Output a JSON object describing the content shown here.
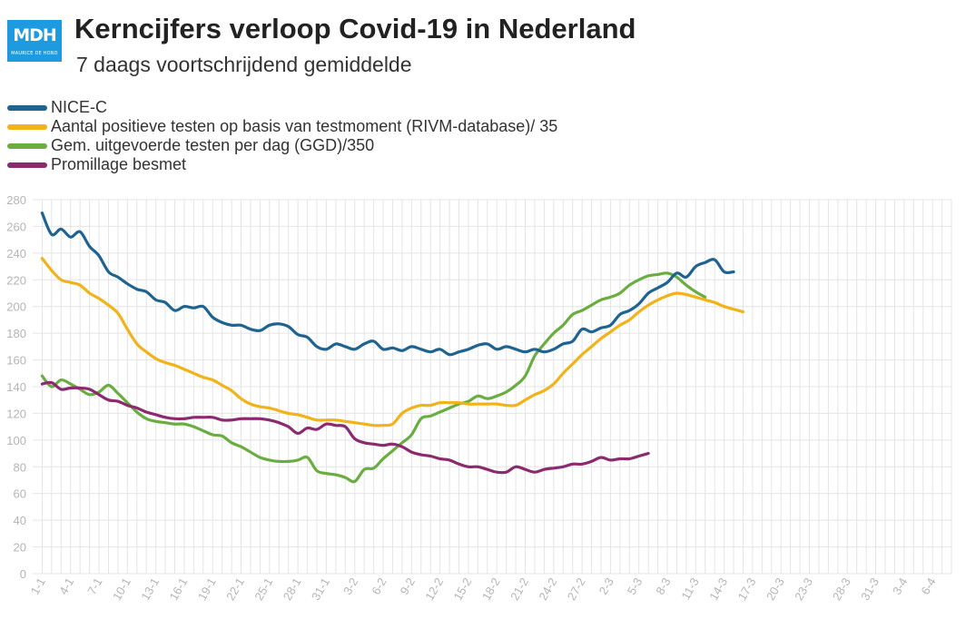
{
  "header": {
    "logo_text": "MDH",
    "logo_subtext": "MAURICE DE HOND",
    "title": "Kerncijfers verloop Covid-19 in Nederland",
    "subtitle": "7 daags voortschrijdend gemiddelde"
  },
  "colors": {
    "logo_bg": "#1e9be0",
    "grid": "#e4e4e4",
    "tick_text": "#b5b5b5"
  },
  "chart_data": {
    "type": "line",
    "title": "Kerncijfers verloop Covid-19 in Nederland",
    "subtitle": "7 daags voortschrijdend gemiddelde",
    "xlabel": "",
    "ylabel": "",
    "ylim": [
      0,
      280
    ],
    "yticks": [
      0,
      20,
      40,
      60,
      80,
      100,
      120,
      140,
      160,
      180,
      200,
      220,
      240,
      260,
      280
    ],
    "x_tick_labels": [
      "1-1",
      "4-1",
      "7-1",
      "10-1",
      "13-1",
      "16-1",
      "19-1",
      "22-1",
      "25-1",
      "28-1",
      "31-1",
      "3-2",
      "6-2",
      "9-2",
      "12-2",
      "15-2",
      "18-2",
      "21-2",
      "24-2",
      "27-2",
      "2-3",
      "5-3",
      "8-3",
      "11-3",
      "14-3",
      "17-3",
      "20-3",
      "23-3",
      "28-3",
      "31-3",
      "3-4",
      "6-4"
    ],
    "x_tick_days": [
      1,
      4,
      7,
      10,
      13,
      16,
      19,
      22,
      25,
      28,
      31,
      34,
      37,
      40,
      43,
      46,
      49,
      52,
      55,
      58,
      61,
      64,
      67,
      70,
      73,
      76,
      79,
      82,
      86,
      89,
      92,
      95
    ],
    "x_range": [
      0,
      97
    ],
    "grid": true,
    "legend_position": "top-left",
    "series": [
      {
        "name": "NICE-C",
        "color": "#1f6391",
        "points": [
          [
            1,
            270
          ],
          [
            2,
            254
          ],
          [
            3,
            258
          ],
          [
            4,
            252
          ],
          [
            5,
            256
          ],
          [
            6,
            245
          ],
          [
            7,
            238
          ],
          [
            8,
            226
          ],
          [
            9,
            222
          ],
          [
            10,
            217
          ],
          [
            11,
            213
          ],
          [
            12,
            211
          ],
          [
            13,
            205
          ],
          [
            14,
            203
          ],
          [
            15,
            197
          ],
          [
            16,
            200
          ],
          [
            17,
            199
          ],
          [
            18,
            200
          ],
          [
            19,
            192
          ],
          [
            20,
            188
          ],
          [
            21,
            186
          ],
          [
            22,
            186
          ],
          [
            23,
            183
          ],
          [
            24,
            182
          ],
          [
            25,
            186
          ],
          [
            26,
            187
          ],
          [
            27,
            185
          ],
          [
            28,
            179
          ],
          [
            29,
            177
          ],
          [
            30,
            170
          ],
          [
            31,
            168
          ],
          [
            32,
            172
          ],
          [
            33,
            170
          ],
          [
            34,
            168
          ],
          [
            35,
            172
          ],
          [
            36,
            174
          ],
          [
            37,
            168
          ],
          [
            38,
            169
          ],
          [
            39,
            167
          ],
          [
            40,
            170
          ],
          [
            41,
            168
          ],
          [
            42,
            166
          ],
          [
            43,
            168
          ],
          [
            44,
            164
          ],
          [
            45,
            166
          ],
          [
            46,
            168
          ],
          [
            47,
            171
          ],
          [
            48,
            172
          ],
          [
            49,
            168
          ],
          [
            50,
            170
          ],
          [
            51,
            168
          ],
          [
            52,
            166
          ],
          [
            53,
            168
          ],
          [
            54,
            166
          ],
          [
            55,
            168
          ],
          [
            56,
            172
          ],
          [
            57,
            174
          ],
          [
            58,
            183
          ],
          [
            59,
            181
          ],
          [
            60,
            184
          ],
          [
            61,
            186
          ],
          [
            62,
            194
          ],
          [
            63,
            197
          ],
          [
            64,
            202
          ],
          [
            65,
            210
          ],
          [
            66,
            214
          ],
          [
            67,
            218
          ],
          [
            68,
            225
          ],
          [
            69,
            222
          ],
          [
            70,
            230
          ],
          [
            71,
            233
          ],
          [
            72,
            235
          ],
          [
            73,
            226
          ],
          [
            74,
            226
          ]
        ]
      },
      {
        "name": "Aantal positieve testen op basis van testmoment (RIVM-database)/ 35",
        "color": "#f2b219",
        "points": [
          [
            1,
            236
          ],
          [
            2,
            227
          ],
          [
            3,
            220
          ],
          [
            4,
            218
          ],
          [
            5,
            216
          ],
          [
            6,
            210
          ],
          [
            7,
            206
          ],
          [
            8,
            201
          ],
          [
            9,
            195
          ],
          [
            10,
            183
          ],
          [
            11,
            172
          ],
          [
            12,
            166
          ],
          [
            13,
            161
          ],
          [
            14,
            158
          ],
          [
            15,
            156
          ],
          [
            16,
            153
          ],
          [
            17,
            150
          ],
          [
            18,
            147
          ],
          [
            19,
            145
          ],
          [
            20,
            141
          ],
          [
            21,
            137
          ],
          [
            22,
            131
          ],
          [
            23,
            127
          ],
          [
            24,
            125
          ],
          [
            25,
            124
          ],
          [
            26,
            122
          ],
          [
            27,
            120
          ],
          [
            28,
            119
          ],
          [
            29,
            117
          ],
          [
            30,
            115
          ],
          [
            31,
            115
          ],
          [
            32,
            115
          ],
          [
            33,
            114
          ],
          [
            34,
            113
          ],
          [
            35,
            112
          ],
          [
            36,
            111
          ],
          [
            37,
            111
          ],
          [
            38,
            112
          ],
          [
            39,
            120
          ],
          [
            40,
            124
          ],
          [
            41,
            126
          ],
          [
            42,
            126
          ],
          [
            43,
            128
          ],
          [
            44,
            128
          ],
          [
            45,
            128
          ],
          [
            46,
            127
          ],
          [
            47,
            127
          ],
          [
            48,
            127
          ],
          [
            49,
            127
          ],
          [
            50,
            126
          ],
          [
            51,
            126
          ],
          [
            52,
            130
          ],
          [
            53,
            134
          ],
          [
            54,
            137
          ],
          [
            55,
            142
          ],
          [
            56,
            150
          ],
          [
            57,
            157
          ],
          [
            58,
            164
          ],
          [
            59,
            170
          ],
          [
            60,
            176
          ],
          [
            61,
            181
          ],
          [
            62,
            186
          ],
          [
            63,
            190
          ],
          [
            64,
            196
          ],
          [
            65,
            201
          ],
          [
            66,
            205
          ],
          [
            67,
            208
          ],
          [
            68,
            210
          ],
          [
            69,
            209
          ],
          [
            70,
            207
          ],
          [
            71,
            205
          ],
          [
            72,
            203
          ],
          [
            73,
            200
          ],
          [
            74,
            198
          ],
          [
            75,
            196
          ]
        ]
      },
      {
        "name": "Gem. uitgevoerde testen per dag (GGD)/350",
        "color": "#6aad40",
        "points": [
          [
            1,
            148
          ],
          [
            2,
            140
          ],
          [
            3,
            145
          ],
          [
            4,
            142
          ],
          [
            5,
            138
          ],
          [
            6,
            134
          ],
          [
            7,
            136
          ],
          [
            8,
            141
          ],
          [
            9,
            135
          ],
          [
            10,
            128
          ],
          [
            11,
            121
          ],
          [
            12,
            116
          ],
          [
            13,
            114
          ],
          [
            14,
            113
          ],
          [
            15,
            112
          ],
          [
            16,
            112
          ],
          [
            17,
            110
          ],
          [
            18,
            107
          ],
          [
            19,
            104
          ],
          [
            20,
            103
          ],
          [
            21,
            98
          ],
          [
            22,
            95
          ],
          [
            23,
            91
          ],
          [
            24,
            87
          ],
          [
            25,
            85
          ],
          [
            26,
            84
          ],
          [
            27,
            84
          ],
          [
            28,
            85
          ],
          [
            29,
            87
          ],
          [
            30,
            77
          ],
          [
            31,
            75
          ],
          [
            32,
            74
          ],
          [
            33,
            72
          ],
          [
            34,
            69
          ],
          [
            35,
            78
          ],
          [
            36,
            79
          ],
          [
            37,
            86
          ],
          [
            38,
            92
          ],
          [
            39,
            98
          ],
          [
            40,
            104
          ],
          [
            41,
            116
          ],
          [
            42,
            118
          ],
          [
            43,
            121
          ],
          [
            44,
            124
          ],
          [
            45,
            127
          ],
          [
            46,
            129
          ],
          [
            47,
            133
          ],
          [
            48,
            131
          ],
          [
            49,
            133
          ],
          [
            50,
            136
          ],
          [
            51,
            141
          ],
          [
            52,
            148
          ],
          [
            53,
            163
          ],
          [
            54,
            172
          ],
          [
            55,
            180
          ],
          [
            56,
            186
          ],
          [
            57,
            194
          ],
          [
            58,
            197
          ],
          [
            59,
            201
          ],
          [
            60,
            205
          ],
          [
            61,
            207
          ],
          [
            62,
            210
          ],
          [
            63,
            216
          ],
          [
            64,
            220
          ],
          [
            65,
            223
          ],
          [
            66,
            224
          ],
          [
            67,
            225
          ],
          [
            68,
            222
          ],
          [
            69,
            216
          ],
          [
            70,
            211
          ],
          [
            71,
            207
          ]
        ]
      },
      {
        "name": "Promillage besmet",
        "color": "#8b2a6f",
        "points": [
          [
            1,
            142
          ],
          [
            2,
            143
          ],
          [
            3,
            138
          ],
          [
            4,
            139
          ],
          [
            5,
            139
          ],
          [
            6,
            138
          ],
          [
            7,
            134
          ],
          [
            8,
            130
          ],
          [
            9,
            129
          ],
          [
            10,
            126
          ],
          [
            11,
            124
          ],
          [
            12,
            121
          ],
          [
            13,
            119
          ],
          [
            14,
            117
          ],
          [
            15,
            116
          ],
          [
            16,
            116
          ],
          [
            17,
            117
          ],
          [
            18,
            117
          ],
          [
            19,
            117
          ],
          [
            20,
            115
          ],
          [
            21,
            115
          ],
          [
            22,
            116
          ],
          [
            23,
            116
          ],
          [
            24,
            116
          ],
          [
            25,
            115
          ],
          [
            26,
            113
          ],
          [
            27,
            110
          ],
          [
            28,
            105
          ],
          [
            29,
            109
          ],
          [
            30,
            108
          ],
          [
            31,
            112
          ],
          [
            32,
            111
          ],
          [
            33,
            110
          ],
          [
            34,
            101
          ],
          [
            35,
            98
          ],
          [
            36,
            97
          ],
          [
            37,
            96
          ],
          [
            38,
            97
          ],
          [
            39,
            95
          ],
          [
            40,
            91
          ],
          [
            41,
            89
          ],
          [
            42,
            88
          ],
          [
            43,
            86
          ],
          [
            44,
            85
          ],
          [
            45,
            82
          ],
          [
            46,
            80
          ],
          [
            47,
            80
          ],
          [
            48,
            78
          ],
          [
            49,
            76
          ],
          [
            50,
            76
          ],
          [
            51,
            80
          ],
          [
            52,
            78
          ],
          [
            53,
            76
          ],
          [
            54,
            78
          ],
          [
            55,
            79
          ],
          [
            56,
            80
          ],
          [
            57,
            82
          ],
          [
            58,
            82
          ],
          [
            59,
            84
          ],
          [
            60,
            87
          ],
          [
            61,
            85
          ],
          [
            62,
            86
          ],
          [
            63,
            86
          ],
          [
            64,
            88
          ],
          [
            65,
            90
          ]
        ]
      }
    ]
  }
}
